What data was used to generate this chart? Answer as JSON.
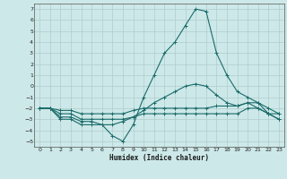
{
  "xlabel": "Humidex (Indice chaleur)",
  "background_color": "#cde8e8",
  "grid_color": "#b0cccc",
  "line_color": "#1a6b6b",
  "xlim": [
    -0.5,
    23.5
  ],
  "ylim": [
    -5.5,
    7.5
  ],
  "xticks": [
    0,
    1,
    2,
    3,
    4,
    5,
    6,
    7,
    8,
    9,
    10,
    11,
    12,
    13,
    14,
    15,
    16,
    17,
    18,
    19,
    20,
    21,
    22,
    23
  ],
  "yticks": [
    -5,
    -4,
    -3,
    -2,
    -1,
    0,
    1,
    2,
    3,
    4,
    5,
    6,
    7
  ],
  "series1_x": [
    0,
    1,
    2,
    3,
    4,
    5,
    6,
    7,
    8,
    9,
    10,
    11,
    12,
    13,
    14,
    15,
    16,
    17,
    18,
    19,
    20,
    21,
    22,
    23
  ],
  "series1_y": [
    -2,
    -2,
    -3,
    -3,
    -3.5,
    -3.5,
    -3.5,
    -4.5,
    -5,
    -3.5,
    -1,
    1,
    3,
    4,
    5.5,
    7,
    6.8,
    3,
    1,
    -0.5,
    -1,
    -1.5,
    -2.5,
    -2.5
  ],
  "series2_x": [
    0,
    1,
    2,
    3,
    4,
    5,
    6,
    7,
    8,
    9,
    10,
    11,
    12,
    13,
    14,
    15,
    16,
    17,
    18,
    19,
    20,
    21,
    22,
    23
  ],
  "series2_y": [
    -2,
    -2,
    -2.2,
    -2.2,
    -2.5,
    -2.5,
    -2.5,
    -2.5,
    -2.5,
    -2.2,
    -2,
    -2,
    -2,
    -2,
    -2,
    -2,
    -2,
    -1.8,
    -1.8,
    -1.8,
    -1.5,
    -1.5,
    -2,
    -2.5
  ],
  "series3_x": [
    0,
    1,
    2,
    3,
    4,
    5,
    6,
    7,
    8,
    9,
    10,
    11,
    12,
    13,
    14,
    15,
    16,
    17,
    18,
    19,
    20,
    21,
    22,
    23
  ],
  "series3_y": [
    -2,
    -2,
    -2.5,
    -2.5,
    -3,
    -3,
    -3,
    -3,
    -3,
    -2.8,
    -2.5,
    -2.5,
    -2.5,
    -2.5,
    -2.5,
    -2.5,
    -2.5,
    -2.5,
    -2.5,
    -2.5,
    -2,
    -2,
    -2.5,
    -3
  ],
  "series4_x": [
    0,
    1,
    2,
    3,
    4,
    5,
    6,
    7,
    8,
    9,
    10,
    11,
    12,
    13,
    14,
    15,
    16,
    17,
    18,
    19,
    20,
    21,
    22,
    23
  ],
  "series4_y": [
    -2,
    -2,
    -2.8,
    -2.8,
    -3.2,
    -3.2,
    -3.5,
    -3.5,
    -3.2,
    -2.8,
    -2.2,
    -1.5,
    -1,
    -0.5,
    0,
    0.2,
    0,
    -0.8,
    -1.5,
    -1.8,
    -1.5,
    -2,
    -2.5,
    -3
  ]
}
